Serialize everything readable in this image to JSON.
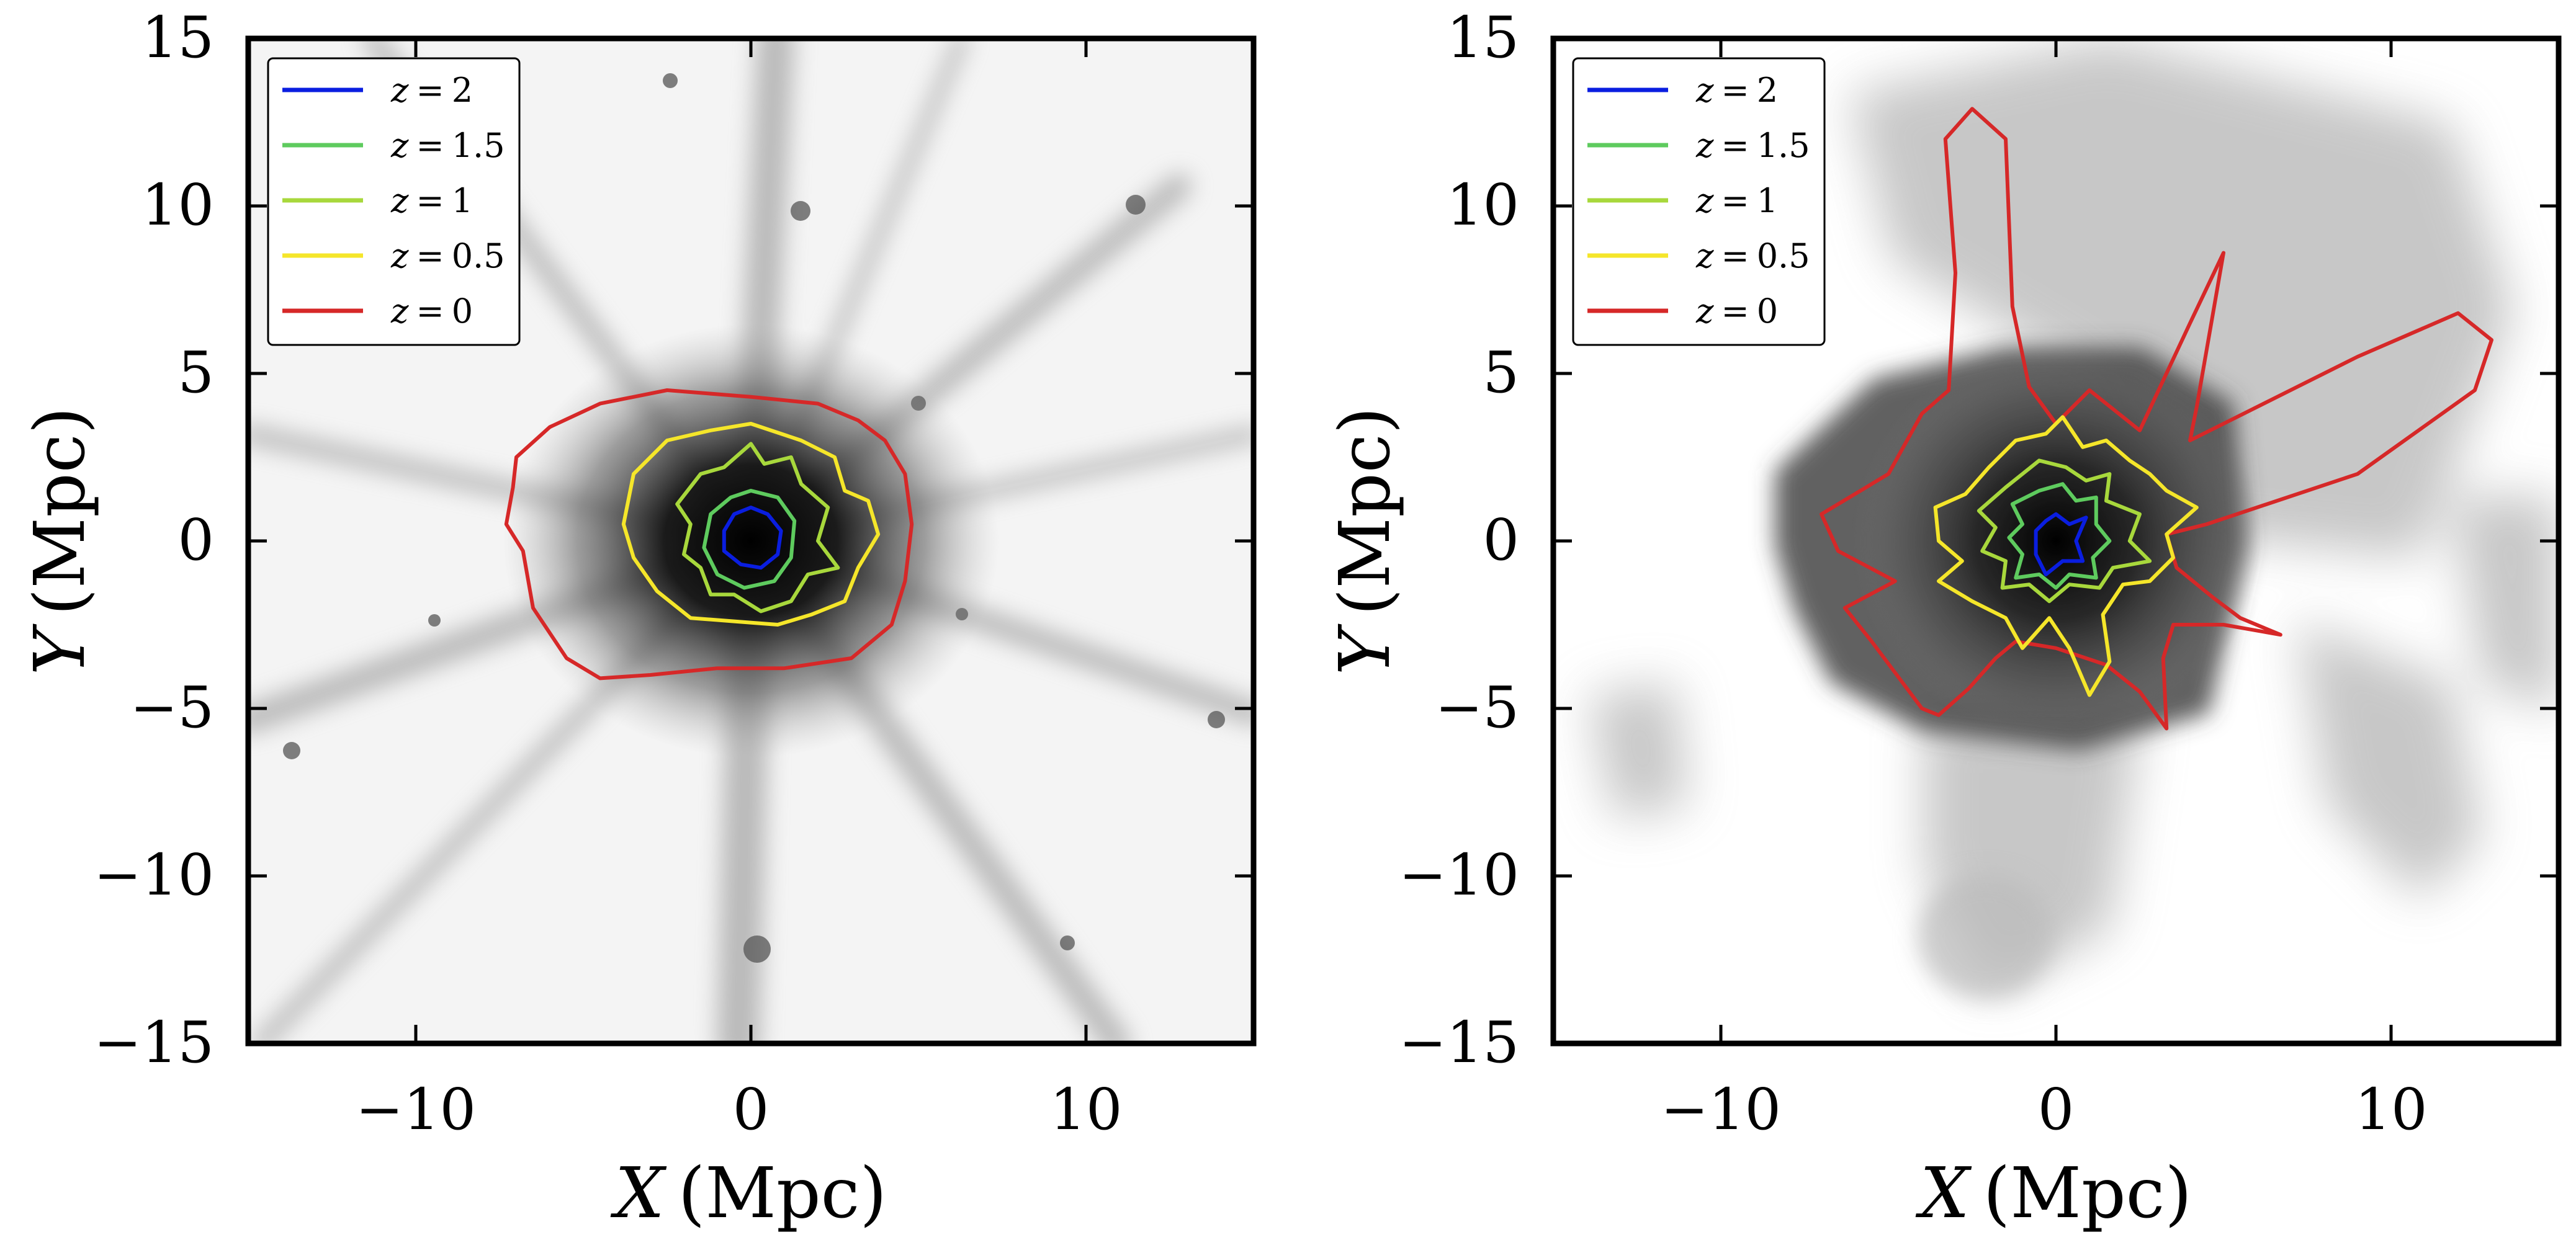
{
  "chart_data": [
    {
      "type": "contour",
      "panel": "left",
      "xlabel_var": "X",
      "xlabel_unit": "(Mpc)",
      "ylabel_var": "Y",
      "ylabel_unit": "(Mpc)",
      "xlim": [
        -15,
        15
      ],
      "ylim": [
        -15,
        15
      ],
      "xticks": [
        -10,
        0,
        10
      ],
      "yticks": [
        -15,
        -10,
        -5,
        0,
        5,
        10,
        15
      ],
      "xtick_labels": [
        "−10",
        "0",
        "10"
      ],
      "ytick_labels": [
        "−15",
        "−10",
        "−5",
        "0",
        "5",
        "10",
        "15"
      ],
      "background": "grayscale projected density map with filaments",
      "legend_position": "top-left",
      "series": [
        {
          "name": "z = 2",
          "label_var": "z",
          "label_val": "2",
          "color": "#0a1ee0",
          "points": [
            [
              0,
              1
            ],
            [
              0.5,
              0.8
            ],
            [
              0.9,
              0.3
            ],
            [
              0.8,
              -0.4
            ],
            [
              0.3,
              -0.8
            ],
            [
              -0.3,
              -0.7
            ],
            [
              -0.8,
              -0.3
            ],
            [
              -0.8,
              0.3
            ],
            [
              -0.5,
              0.8
            ]
          ]
        },
        {
          "name": "z = 1.5",
          "label_var": "z",
          "label_val": "1.5",
          "color": "#5ecb5e",
          "points": [
            [
              0,
              1.5
            ],
            [
              0.8,
              1.3
            ],
            [
              1.3,
              0.6
            ],
            [
              1.2,
              -0.5
            ],
            [
              0.7,
              -1.2
            ],
            [
              -0.2,
              -1.4
            ],
            [
              -1,
              -1
            ],
            [
              -1.4,
              -0.2
            ],
            [
              -1.2,
              0.8
            ],
            [
              -0.6,
              1.3
            ]
          ]
        },
        {
          "name": "z = 1",
          "label_var": "z",
          "label_val": "1",
          "color": "#a8d83c",
          "points": [
            [
              -1.5,
              2
            ],
            [
              -0.8,
              2.2
            ],
            [
              0,
              2.9
            ],
            [
              0.4,
              2.3
            ],
            [
              1.2,
              2.5
            ],
            [
              1.5,
              1.7
            ],
            [
              2.3,
              1
            ],
            [
              2,
              0
            ],
            [
              2.6,
              -0.8
            ],
            [
              1.7,
              -1
            ],
            [
              1.2,
              -1.8
            ],
            [
              0.3,
              -2.1
            ],
            [
              -0.5,
              -1.6
            ],
            [
              -1.2,
              -1.6
            ],
            [
              -1.5,
              -0.8
            ],
            [
              -2,
              -0.4
            ],
            [
              -1.8,
              0.5
            ],
            [
              -2.2,
              1.1
            ]
          ]
        },
        {
          "name": "z = 0.5",
          "label_var": "z",
          "label_val": "0.5",
          "color": "#f5e62a",
          "points": [
            [
              -3.5,
              2
            ],
            [
              -2.5,
              3
            ],
            [
              -1.2,
              3.3
            ],
            [
              0,
              3.5
            ],
            [
              1.5,
              3
            ],
            [
              2.5,
              2.5
            ],
            [
              2.8,
              1.5
            ],
            [
              3.5,
              1.2
            ],
            [
              3.8,
              0.2
            ],
            [
              3.2,
              -0.8
            ],
            [
              2.8,
              -1.8
            ],
            [
              1.8,
              -2.2
            ],
            [
              0.8,
              -2.5
            ],
            [
              -0.5,
              -2.4
            ],
            [
              -1.8,
              -2.3
            ],
            [
              -2.8,
              -1.5
            ],
            [
              -3.5,
              -0.5
            ],
            [
              -3.8,
              0.5
            ]
          ]
        },
        {
          "name": "z = 0",
          "label_var": "z",
          "label_val": "0",
          "color": "#d62828",
          "points": [
            [
              -7,
              2.5
            ],
            [
              -6,
              3.4
            ],
            [
              -4.5,
              4.1
            ],
            [
              -2.5,
              4.5
            ],
            [
              0,
              4.3
            ],
            [
              2,
              4.1
            ],
            [
              3.2,
              3.6
            ],
            [
              4,
              3
            ],
            [
              4.6,
              2
            ],
            [
              4.8,
              0.5
            ],
            [
              4.6,
              -1.2
            ],
            [
              4.2,
              -2.5
            ],
            [
              3,
              -3.5
            ],
            [
              1,
              -3.8
            ],
            [
              -1,
              -3.8
            ],
            [
              -3,
              -4
            ],
            [
              -4.5,
              -4.1
            ],
            [
              -5.5,
              -3.5
            ],
            [
              -6.5,
              -2
            ],
            [
              -6.8,
              -0.3
            ],
            [
              -7.3,
              0.5
            ],
            [
              -7.1,
              1.6
            ]
          ]
        }
      ]
    },
    {
      "type": "contour",
      "panel": "right",
      "xlabel_var": "X",
      "xlabel_unit": "(Mpc)",
      "ylabel_var": "Y",
      "ylabel_unit": "(Mpc)",
      "xlim": [
        -15,
        15
      ],
      "ylim": [
        -15,
        15
      ],
      "xticks": [
        -10,
        0,
        10
      ],
      "yticks": [
        -15,
        -10,
        -5,
        0,
        5,
        10,
        15
      ],
      "xtick_labels": [
        "−10",
        "0",
        "10"
      ],
      "ytick_labels": [
        "−15",
        "−10",
        "−5",
        "0",
        "5",
        "10",
        "15"
      ],
      "background": "grayscale projected temperature map",
      "legend_position": "top-left",
      "series": [
        {
          "name": "z = 2",
          "label_var": "z",
          "label_val": "2",
          "color": "#0a1ee0",
          "points": [
            [
              0,
              0.8
            ],
            [
              0.4,
              0.5
            ],
            [
              0.9,
              0.7
            ],
            [
              0.6,
              0
            ],
            [
              0.8,
              -0.6
            ],
            [
              0.2,
              -0.6
            ],
            [
              -0.3,
              -1
            ],
            [
              -0.6,
              -0.4
            ],
            [
              -0.6,
              0.3
            ],
            [
              -0.3,
              0.6
            ]
          ]
        },
        {
          "name": "z = 1.5",
          "label_var": "z",
          "label_val": "1.5",
          "color": "#5ecb5e",
          "points": [
            [
              -0.5,
              1.5
            ],
            [
              0.2,
              1.7
            ],
            [
              0.6,
              1.2
            ],
            [
              1.2,
              1.3
            ],
            [
              1.2,
              0.5
            ],
            [
              1.6,
              0
            ],
            [
              1.1,
              -0.5
            ],
            [
              1.2,
              -1.1
            ],
            [
              0.4,
              -1
            ],
            [
              0,
              -1.4
            ],
            [
              -0.5,
              -1
            ],
            [
              -1.2,
              -1.1
            ],
            [
              -1,
              -0.4
            ],
            [
              -1.4,
              0.1
            ],
            [
              -1,
              0.5
            ],
            [
              -1.3,
              1.1
            ]
          ]
        },
        {
          "name": "z = 1",
          "label_var": "z",
          "label_val": "1",
          "color": "#a8d83c",
          "points": [
            [
              -1.5,
              1.6
            ],
            [
              -0.5,
              2.4
            ],
            [
              0.3,
              2.2
            ],
            [
              0.9,
              1.8
            ],
            [
              1.6,
              2
            ],
            [
              1.5,
              1.2
            ],
            [
              2.5,
              0.8
            ],
            [
              2.2,
              0
            ],
            [
              2.8,
              -0.6
            ],
            [
              1.7,
              -0.8
            ],
            [
              1.3,
              -1.4
            ],
            [
              0.4,
              -1.3
            ],
            [
              -0.2,
              -1.8
            ],
            [
              -0.8,
              -1.3
            ],
            [
              -1.6,
              -1.4
            ],
            [
              -1.5,
              -0.6
            ],
            [
              -2.2,
              -0.3
            ],
            [
              -1.8,
              0.4
            ],
            [
              -2.3,
              0.9
            ]
          ]
        },
        {
          "name": "z = 0.5",
          "label_var": "z",
          "label_val": "0.5",
          "color": "#f5e62a",
          "points": [
            [
              -2,
              2.2
            ],
            [
              -1.2,
              3
            ],
            [
              -0.3,
              3.2
            ],
            [
              0.2,
              3.7
            ],
            [
              0.8,
              2.8
            ],
            [
              1.5,
              3
            ],
            [
              2.2,
              2.4
            ],
            [
              2.8,
              2
            ],
            [
              3.3,
              1.5
            ],
            [
              4.2,
              1
            ],
            [
              3.3,
              0.2
            ],
            [
              3.5,
              -0.5
            ],
            [
              2.8,
              -1.2
            ],
            [
              2,
              -1.3
            ],
            [
              1.4,
              -2.2
            ],
            [
              1.6,
              -3.6
            ],
            [
              1,
              -4.6
            ],
            [
              0.4,
              -3.2
            ],
            [
              -0.2,
              -2.3
            ],
            [
              -1,
              -3.2
            ],
            [
              -1.5,
              -2.3
            ],
            [
              -2.5,
              -1.8
            ],
            [
              -3.5,
              -1.2
            ],
            [
              -2.8,
              -0.6
            ],
            [
              -3.5,
              0
            ],
            [
              -3.6,
              1
            ],
            [
              -2.7,
              1.4
            ]
          ]
        },
        {
          "name": "z = 0",
          "label_var": "z",
          "label_val": "0",
          "color": "#d62828",
          "points": [
            [
              -3.2,
              4.5
            ],
            [
              -3,
              8
            ],
            [
              -3.3,
              12
            ],
            [
              -2.5,
              12.9
            ],
            [
              -1.5,
              12
            ],
            [
              -1.3,
              7
            ],
            [
              -0.8,
              4.6
            ],
            [
              0,
              3.5
            ],
            [
              1,
              4.5
            ],
            [
              2.5,
              3.3
            ],
            [
              4,
              6.5
            ],
            [
              5,
              8.6
            ],
            [
              4.2,
              4
            ],
            [
              4,
              3
            ],
            [
              9,
              5.5
            ],
            [
              12,
              6.8
            ],
            [
              13,
              6
            ],
            [
              12.5,
              4.5
            ],
            [
              9,
              2
            ],
            [
              4.5,
              0.5
            ],
            [
              3.3,
              0.2
            ],
            [
              3.6,
              -0.8
            ],
            [
              4.7,
              -1.7
            ],
            [
              5.5,
              -2.3
            ],
            [
              6.7,
              -2.8
            ],
            [
              5,
              -2.5
            ],
            [
              3.5,
              -2.5
            ],
            [
              3.2,
              -3.5
            ],
            [
              3.3,
              -5.6
            ],
            [
              2.5,
              -4.5
            ],
            [
              1.5,
              -3.7
            ],
            [
              0,
              -3.2
            ],
            [
              -1.2,
              -3
            ],
            [
              -1.8,
              -3.5
            ],
            [
              -2.6,
              -4.4
            ],
            [
              -3.5,
              -5.2
            ],
            [
              -4,
              -5
            ],
            [
              -5.5,
              -3
            ],
            [
              -6.3,
              -2
            ],
            [
              -4.8,
              -1.2
            ],
            [
              -6.5,
              -0.3
            ],
            [
              -7,
              0.8
            ],
            [
              -5,
              2
            ],
            [
              -4,
              3.8
            ]
          ]
        }
      ]
    }
  ]
}
